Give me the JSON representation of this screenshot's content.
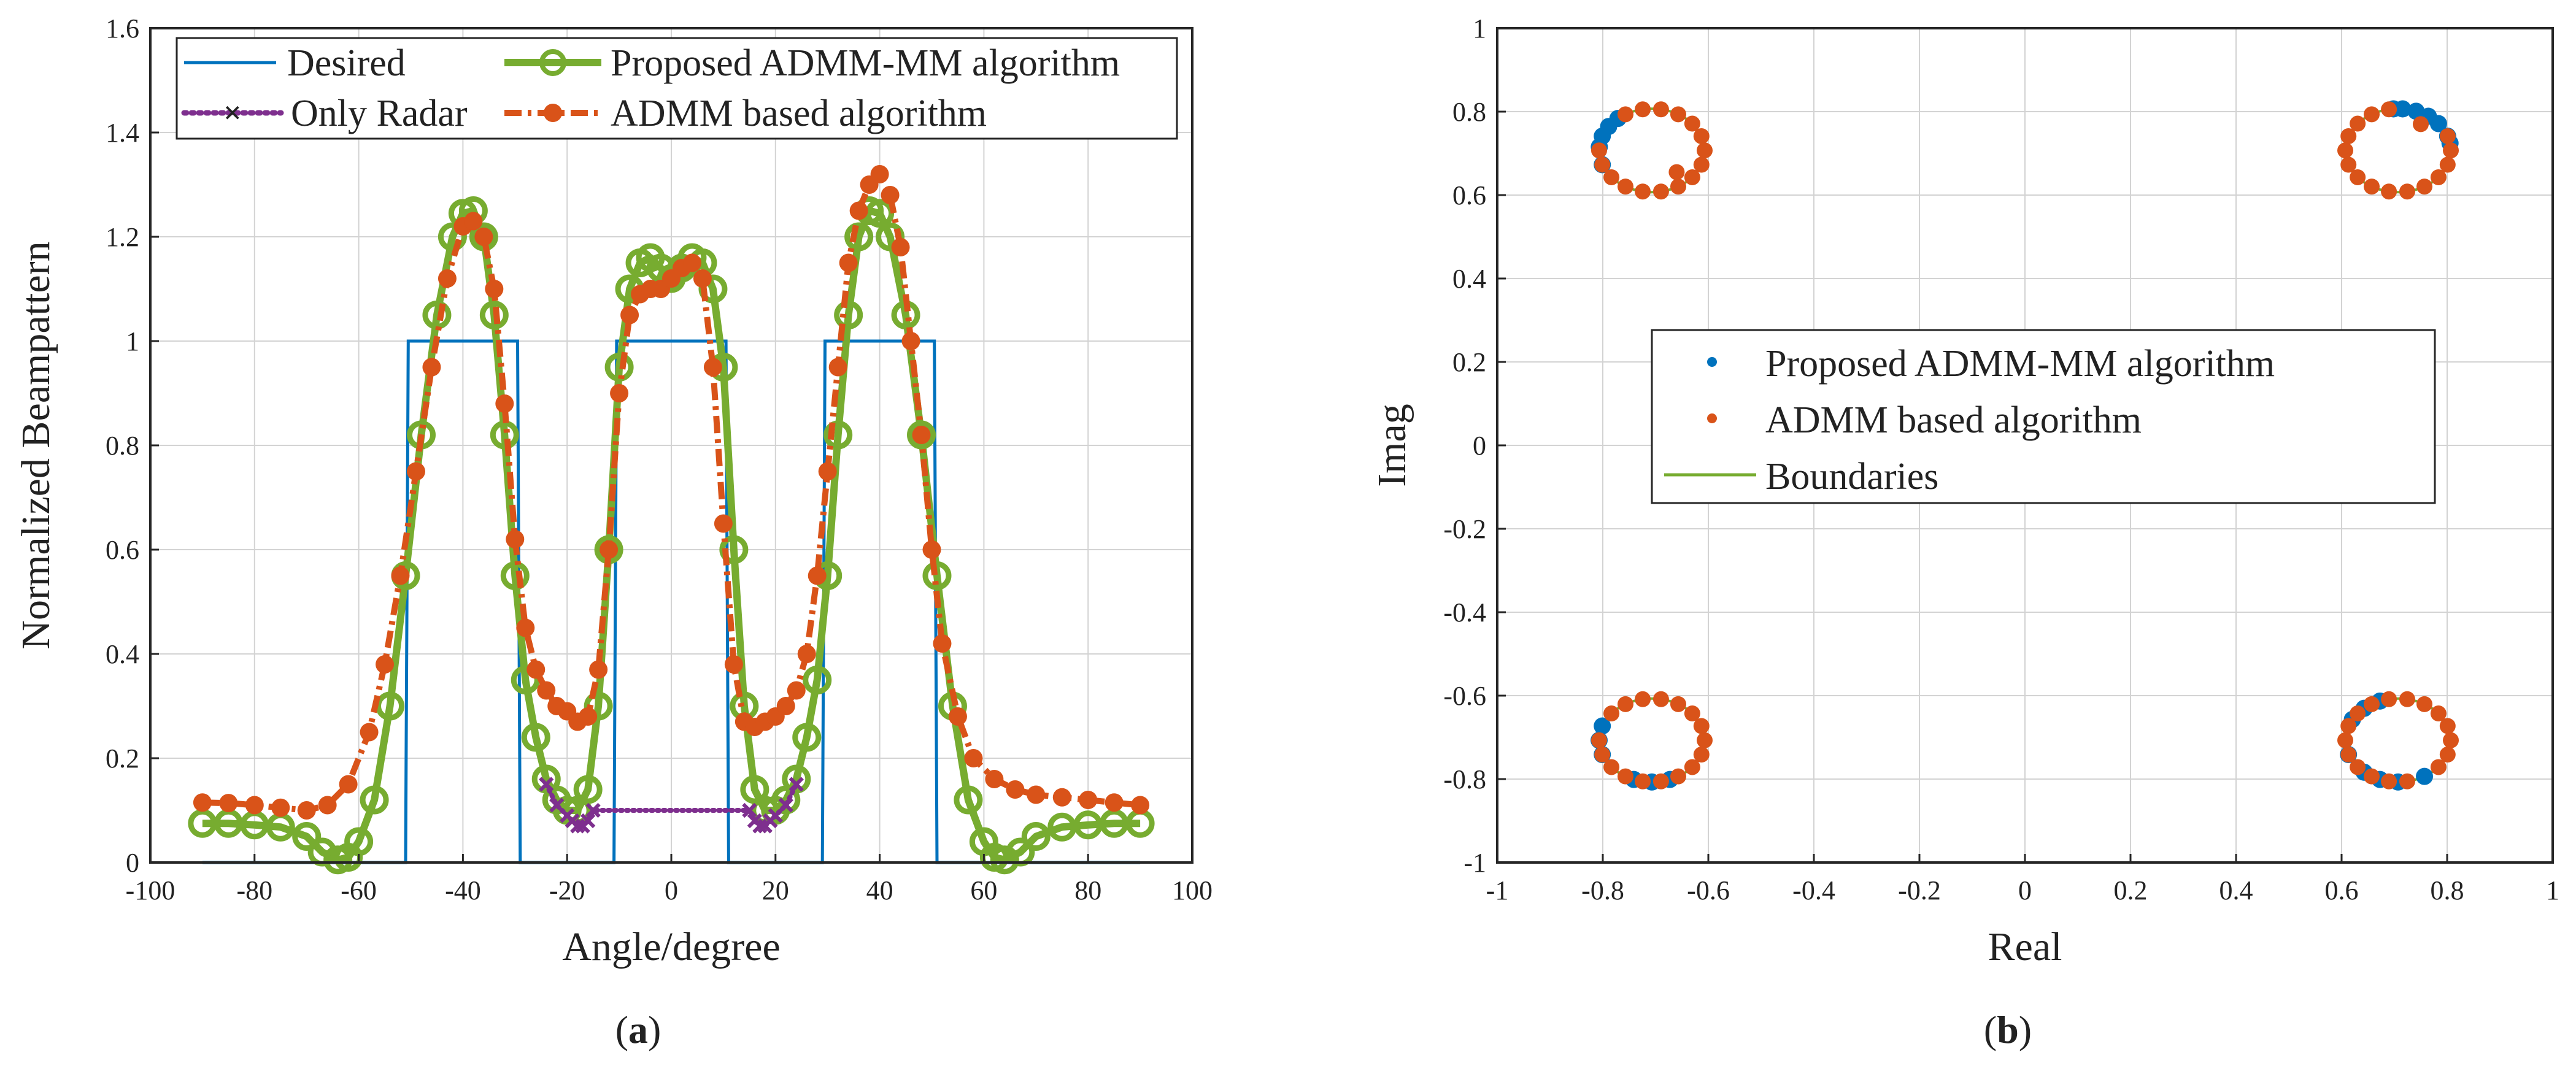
{
  "colors": {
    "desired": "#0072BD",
    "only_radar": "#7E2F8E",
    "proposed": "#77AC30",
    "admm": "#D95319",
    "blue_pts": "#0072BD",
    "orange_pts": "#D95319",
    "boundary": "#77AC30",
    "grid": "#d3d3d3",
    "axis": "#262626"
  },
  "captions": {
    "a": {
      "open": "(",
      "letter": "a",
      "close": ")"
    },
    "b": {
      "open": "(",
      "letter": "b",
      "close": ")"
    }
  },
  "chart_data": [
    {
      "id": "a",
      "type": "line",
      "xlabel": "Angle/degree",
      "ylabel": "Normalized Beampattern",
      "xlim": [
        -100,
        100
      ],
      "ylim": [
        0,
        1.6
      ],
      "xticks": [
        "-100",
        "-80",
        "-60",
        "-40",
        "-20",
        "0",
        "20",
        "40",
        "60",
        "80",
        "100"
      ],
      "yticks": [
        "0",
        "0.2",
        "0.4",
        "0.6",
        "0.8",
        "1",
        "1.2",
        "1.4",
        "1.6"
      ],
      "grid": true,
      "legend_position": "top",
      "legend": [
        "Desired",
        "Proposed ADMM-MM algorithm",
        "Only Radar",
        "ADMM based algorithm"
      ],
      "series": [
        {
          "name": "Desired",
          "style": "solid",
          "x": [
            -90,
            -51,
            -50.5,
            -29.5,
            -29,
            -11,
            -10.5,
            10.5,
            11,
            29,
            29.5,
            50.5,
            51,
            90
          ],
          "y": [
            0,
            0,
            1,
            1,
            0,
            0,
            1,
            1,
            0,
            0,
            1,
            1,
            0,
            0
          ]
        },
        {
          "name": "Proposed ADMM-MM algorithm",
          "style": "solid-circle",
          "x": [
            -90,
            -85,
            -80,
            -75,
            -70,
            -67,
            -64,
            -62,
            -60,
            -57,
            -54,
            -51,
            -48,
            -45,
            -42,
            -40,
            -38,
            -36,
            -34,
            -32,
            -30,
            -28,
            -26,
            -24,
            -22,
            -20,
            -18,
            -16,
            -14,
            -12,
            -10,
            -8,
            -6,
            -4,
            -2,
            0,
            2,
            4,
            6,
            8,
            10,
            12,
            14,
            16,
            18,
            20,
            22,
            24,
            26,
            28,
            30,
            32,
            34,
            36,
            38,
            40,
            42,
            45,
            48,
            51,
            54,
            57,
            60,
            62,
            64,
            67,
            70,
            75,
            80,
            85,
            90
          ],
          "y": [
            0.075,
            0.075,
            0.072,
            0.068,
            0.05,
            0.02,
            0.005,
            0.01,
            0.04,
            0.12,
            0.3,
            0.55,
            0.82,
            1.05,
            1.2,
            1.245,
            1.25,
            1.2,
            1.05,
            0.82,
            0.55,
            0.35,
            0.24,
            0.16,
            0.12,
            0.1,
            0.1,
            0.14,
            0.3,
            0.6,
            0.95,
            1.1,
            1.15,
            1.16,
            1.14,
            1.12,
            1.14,
            1.16,
            1.15,
            1.1,
            0.95,
            0.6,
            0.3,
            0.14,
            0.1,
            0.1,
            0.12,
            0.16,
            0.24,
            0.35,
            0.55,
            0.82,
            1.05,
            1.2,
            1.25,
            1.245,
            1.2,
            1.05,
            0.82,
            0.55,
            0.3,
            0.12,
            0.04,
            0.01,
            0.005,
            0.02,
            0.05,
            0.068,
            0.072,
            0.075,
            0.075
          ]
        },
        {
          "name": "Only Radar",
          "style": "dotted-x",
          "x": [
            -24,
            -22,
            -20,
            -19,
            -18,
            -17,
            -16,
            -15,
            15,
            16,
            17,
            18,
            19,
            20,
            22,
            24
          ],
          "y": [
            0.15,
            0.11,
            0.09,
            0.08,
            0.07,
            0.07,
            0.08,
            0.1,
            0.1,
            0.08,
            0.07,
            0.07,
            0.08,
            0.09,
            0.11,
            0.15
          ]
        },
        {
          "name": "ADMM based algorithm",
          "style": "dashdot-circle",
          "x": [
            -90,
            -85,
            -80,
            -75,
            -70,
            -66,
            -62,
            -58,
            -55,
            -52,
            -49,
            -46,
            -43,
            -40,
            -38,
            -36,
            -34,
            -32,
            -30,
            -28,
            -26,
            -24,
            -22,
            -20,
            -18,
            -16,
            -14,
            -12,
            -10,
            -8,
            -6,
            -4,
            -2,
            0,
            2,
            4,
            6,
            8,
            10,
            12,
            14,
            16,
            18,
            20,
            22,
            24,
            26,
            28,
            30,
            32,
            34,
            36,
            38,
            40,
            42,
            44,
            46,
            48,
            50,
            52,
            55,
            58,
            62,
            66,
            70,
            75,
            80,
            85,
            90
          ],
          "y": [
            0.115,
            0.114,
            0.11,
            0.105,
            0.1,
            0.11,
            0.15,
            0.25,
            0.38,
            0.55,
            0.75,
            0.95,
            1.12,
            1.22,
            1.23,
            1.2,
            1.1,
            0.88,
            0.62,
            0.45,
            0.37,
            0.33,
            0.3,
            0.29,
            0.27,
            0.28,
            0.37,
            0.6,
            0.9,
            1.05,
            1.09,
            1.1,
            1.1,
            1.12,
            1.14,
            1.15,
            1.12,
            0.95,
            0.65,
            0.38,
            0.27,
            0.26,
            0.27,
            0.28,
            0.3,
            0.33,
            0.4,
            0.55,
            0.75,
            0.95,
            1.15,
            1.25,
            1.3,
            1.32,
            1.28,
            1.18,
            1.0,
            0.82,
            0.6,
            0.42,
            0.28,
            0.2,
            0.16,
            0.14,
            0.13,
            0.125,
            0.12,
            0.115,
            0.11
          ]
        }
      ]
    },
    {
      "id": "b",
      "type": "scatter",
      "xlabel": "Real",
      "ylabel": "Imag",
      "xlim": [
        -1,
        1
      ],
      "ylim": [
        -1,
        1
      ],
      "xticks": [
        "-1",
        "-0.8",
        "-0.6",
        "-0.4",
        "-0.2",
        "0",
        "0.2",
        "0.4",
        "0.6",
        "0.8",
        "1"
      ],
      "yticks": [
        "-1",
        "-0.8",
        "-0.6",
        "-0.4",
        "-0.2",
        "0",
        "0.2",
        "0.4",
        "0.6",
        "0.8",
        "1"
      ],
      "grid": true,
      "legend_position": "center",
      "legend": [
        "Proposed ADMM-MM algorithm",
        "ADMM based algorithm",
        "Boundaries"
      ],
      "boundaries": [
        {
          "cx": -0.707,
          "cy": 0.707,
          "r": 0.1
        },
        {
          "cx": 0.707,
          "cy": 0.707,
          "r": 0.1
        },
        {
          "cx": -0.707,
          "cy": -0.707,
          "r": 0.1
        },
        {
          "cx": 0.707,
          "cy": -0.707,
          "r": 0.1
        }
      ],
      "series": [
        {
          "name": "Proposed ADMM-MM algorithm",
          "cluster_angles_deg": [
            [
              130,
              145,
              160,
              175,
              200
            ],
            [
              40,
              55,
              70,
              85,
              95,
              20,
              10
            ],
            [
              160,
              180,
              200,
              250,
              270,
              290
            ],
            [
              110,
              130,
              150,
              200,
              230,
              250,
              270,
              300
            ]
          ]
        },
        {
          "name": "ADMM based algorithm",
          "cluster_angles_deg": [
            [
              0,
              20,
              40,
              60,
              80,
              100,
              120,
              180,
              200,
              220,
              240,
              260,
              280,
              300,
              320,
              340
            ],
            [
              0,
              20,
              100,
              120,
              140,
              160,
              180,
              200,
              220,
              240,
              260,
              280,
              300,
              320,
              340
            ],
            [
              0,
              20,
              40,
              60,
              80,
              100,
              120,
              140,
              180,
              200,
              220,
              240,
              260,
              280,
              300,
              320,
              340
            ],
            [
              0,
              20,
              40,
              60,
              80,
              100,
              120,
              140,
              160,
              180,
              200,
              220,
              240,
              260,
              280,
              320,
              340
            ]
          ],
          "extra_points": [
            {
              "x": -0.66,
              "y": 0.655
            },
            {
              "x": 0.75,
              "y": 0.77
            }
          ]
        }
      ]
    }
  ]
}
